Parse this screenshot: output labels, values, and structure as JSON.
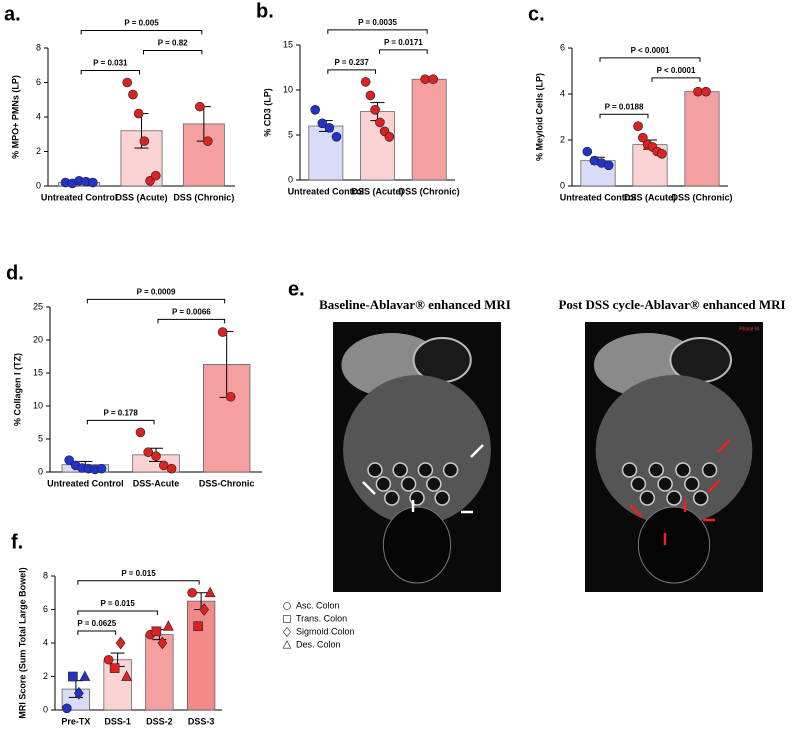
{
  "chart_data": [
    {
      "type": "bar",
      "panel": "a.",
      "ylabel": "% MPO+ PMNs (LP)",
      "categories": [
        "Untreated Control",
        "DSS (Acute)",
        "DSS (Chronic)"
      ],
      "values": [
        0.2,
        3.2,
        3.6
      ],
      "errors": [
        0.05,
        1.0,
        1.0
      ],
      "points": [
        [
          0.2,
          0.15,
          0.3,
          0.25,
          0.2
        ],
        [
          6.0,
          5.3,
          4.2,
          2.6,
          0.3,
          0.6
        ],
        [
          4.6,
          2.6
        ]
      ],
      "bar_colors": [
        "#d9dcf6",
        "#f9d2d2",
        "#f5a0a0"
      ],
      "point_colors": [
        "#2233cc",
        "#dd2222",
        "#dd2222"
      ],
      "marker": "circle",
      "ylim": [
        0,
        8
      ],
      "yticks": [
        0,
        2,
        4,
        6,
        8
      ],
      "comparisons": [
        {
          "pair": [
            0,
            1
          ],
          "label": "P = 0.031"
        },
        {
          "pair": [
            1,
            2
          ],
          "label": "P = 0.82"
        },
        {
          "pair": [
            0,
            2
          ],
          "label": "P = 0.005"
        }
      ]
    },
    {
      "type": "bar",
      "panel": "b.",
      "ylabel": "% CD3 (LP)",
      "categories": [
        "Untreated Control",
        "DSS (Acute)",
        "DSS (Chronic)"
      ],
      "values": [
        6.0,
        7.6,
        11.2
      ],
      "errors": [
        0.6,
        1.0,
        0.1
      ],
      "points": [
        [
          7.8,
          6.3,
          5.8,
          4.8
        ],
        [
          10.9,
          9.4,
          7.8,
          6.4,
          5.4,
          4.8
        ],
        [
          11.2,
          11.2
        ]
      ],
      "bar_colors": [
        "#d9dcf6",
        "#f9d2d2",
        "#f5a0a0"
      ],
      "point_colors": [
        "#2233cc",
        "#dd2222",
        "#dd2222"
      ],
      "marker": "circle",
      "ylim": [
        0,
        15
      ],
      "yticks": [
        0,
        5,
        10,
        15
      ],
      "comparisons": [
        {
          "pair": [
            0,
            1
          ],
          "label": "P = 0.237"
        },
        {
          "pair": [
            1,
            2
          ],
          "label": "P = 0.0171"
        },
        {
          "pair": [
            0,
            2
          ],
          "label": "P = 0.0035"
        }
      ]
    },
    {
      "type": "bar",
      "panel": "c.",
      "ylabel": "% Meyloid Cells (LP)",
      "categories": [
        "Untreated Control",
        "DSS (Acute)",
        "DSS (Chronic)"
      ],
      "values": [
        1.1,
        1.8,
        4.1
      ],
      "errors": [
        0.15,
        0.2,
        0.08
      ],
      "points": [
        [
          1.5,
          1.1,
          1.0,
          0.9
        ],
        [
          2.6,
          2.1,
          1.8,
          1.7,
          1.5,
          1.4
        ],
        [
          4.1,
          4.1
        ]
      ],
      "bar_colors": [
        "#d9dcf6",
        "#f9d2d2",
        "#f5a0a0"
      ],
      "point_colors": [
        "#2233cc",
        "#dd2222",
        "#dd2222"
      ],
      "marker": "circle",
      "ylim": [
        0,
        6
      ],
      "yticks": [
        0,
        2,
        4,
        6
      ],
      "comparisons": [
        {
          "pair": [
            0,
            1
          ],
          "label": "P = 0.0188"
        },
        {
          "pair": [
            1,
            2
          ],
          "label": "P < 0.0001"
        },
        {
          "pair": [
            0,
            2
          ],
          "label": "P < 0.0001"
        }
      ]
    },
    {
      "type": "bar",
      "panel": "d.",
      "ylabel": "% Collagen I (TZ)",
      "categories": [
        "Untreated Control",
        "DSS-Acute",
        "DSS-Chronic"
      ],
      "values": [
        1.1,
        2.6,
        16.3
      ],
      "errors": [
        0.5,
        1.0,
        5.0
      ],
      "points": [
        [
          1.8,
          1.0,
          0.6,
          0.5,
          0.4,
          0.5
        ],
        [
          6.0,
          3.0,
          2.4,
          1.0,
          0.5
        ],
        [
          21.2,
          11.4
        ]
      ],
      "bar_colors": [
        "#d9dcf6",
        "#f9d2d2",
        "#f5a0a0"
      ],
      "point_colors": [
        "#2233cc",
        "#dd2222",
        "#dd2222"
      ],
      "marker": "circle",
      "ylim": [
        0,
        25
      ],
      "yticks": [
        0,
        5,
        10,
        15,
        20,
        25
      ],
      "comparisons": [
        {
          "pair": [
            0,
            1
          ],
          "label": "P = 0.178"
        },
        {
          "pair": [
            1,
            2
          ],
          "label": "P = 0.0066"
        },
        {
          "pair": [
            0,
            2
          ],
          "label": "P = 0.0009"
        }
      ]
    },
    {
      "type": "bar",
      "panel": "f.",
      "ylabel": "MRI Score (Sum Total Large Bowel)",
      "categories": [
        "Pre-TX",
        "DSS-1",
        "DSS-2",
        "DSS-3"
      ],
      "values": [
        1.25,
        3.0,
        4.5,
        6.5
      ],
      "errors": [
        0.5,
        0.4,
        0.3,
        0.5
      ],
      "series": [
        {
          "name": "Asc. Colon",
          "marker": "circle",
          "values": [
            0.1,
            3.0,
            4.5,
            7.0
          ]
        },
        {
          "name": "Trans. Colon",
          "marker": "square",
          "values": [
            2.0,
            2.5,
            4.7,
            5.0
          ]
        },
        {
          "name": "Sigmoid Colon",
          "marker": "diamond",
          "values": [
            1.0,
            4.0,
            4.0,
            6.0
          ]
        },
        {
          "name": "Des. Colon",
          "marker": "triangle",
          "values": [
            2.0,
            2.0,
            5.0,
            7.0
          ]
        }
      ],
      "bar_colors": [
        "#d9dcf6",
        "#f9d2d2",
        "#f5a0a0",
        "#f28a8a"
      ],
      "point_colors": [
        "#2233cc",
        "#dd2222",
        "#dd2222",
        "#dd2222"
      ],
      "ylim": [
        0,
        8
      ],
      "yticks": [
        0,
        2,
        4,
        6,
        8
      ],
      "comparisons": [
        {
          "pair": [
            0,
            1
          ],
          "label": "P = 0.0625"
        },
        {
          "pair": [
            0,
            2
          ],
          "label": "P = 0.015"
        },
        {
          "pair": [
            0,
            3
          ],
          "label": "P = 0.015"
        }
      ]
    }
  ],
  "mri_panel": {
    "panel": "e.",
    "images": [
      {
        "title": "Baseline-Ablavar® enhanced MRI",
        "arrow_color": "#ffffff"
      },
      {
        "title": "Post DSS cycle-Ablavar® enhanced MRI",
        "arrow_color": "#ee2222",
        "overlay_text": "Phase M"
      }
    ]
  }
}
